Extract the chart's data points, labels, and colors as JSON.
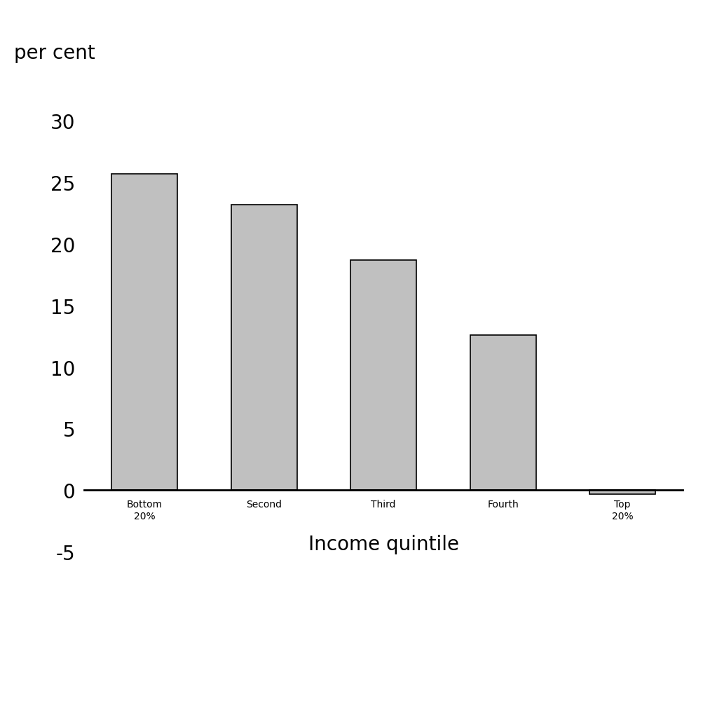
{
  "categories": [
    "Bottom\n20%",
    "Second",
    "Third",
    "Fourth",
    "Top\n20%"
  ],
  "values": [
    25.7,
    23.2,
    18.7,
    12.6,
    -0.3
  ],
  "bar_color": "#c0c0c0",
  "bar_edgecolor": "#000000",
  "ylabel": "per cent",
  "xlabel": "Income quintile",
  "ylim": [
    -7.0,
    33.0
  ],
  "yticks": [
    -5,
    0,
    5,
    10,
    15,
    20,
    25,
    30
  ],
  "background_color": "#ffffff",
  "bar_width": 0.55,
  "tick_fontsize": 20,
  "xlabel_fontsize": 20,
  "ylabel_fontsize": 20
}
